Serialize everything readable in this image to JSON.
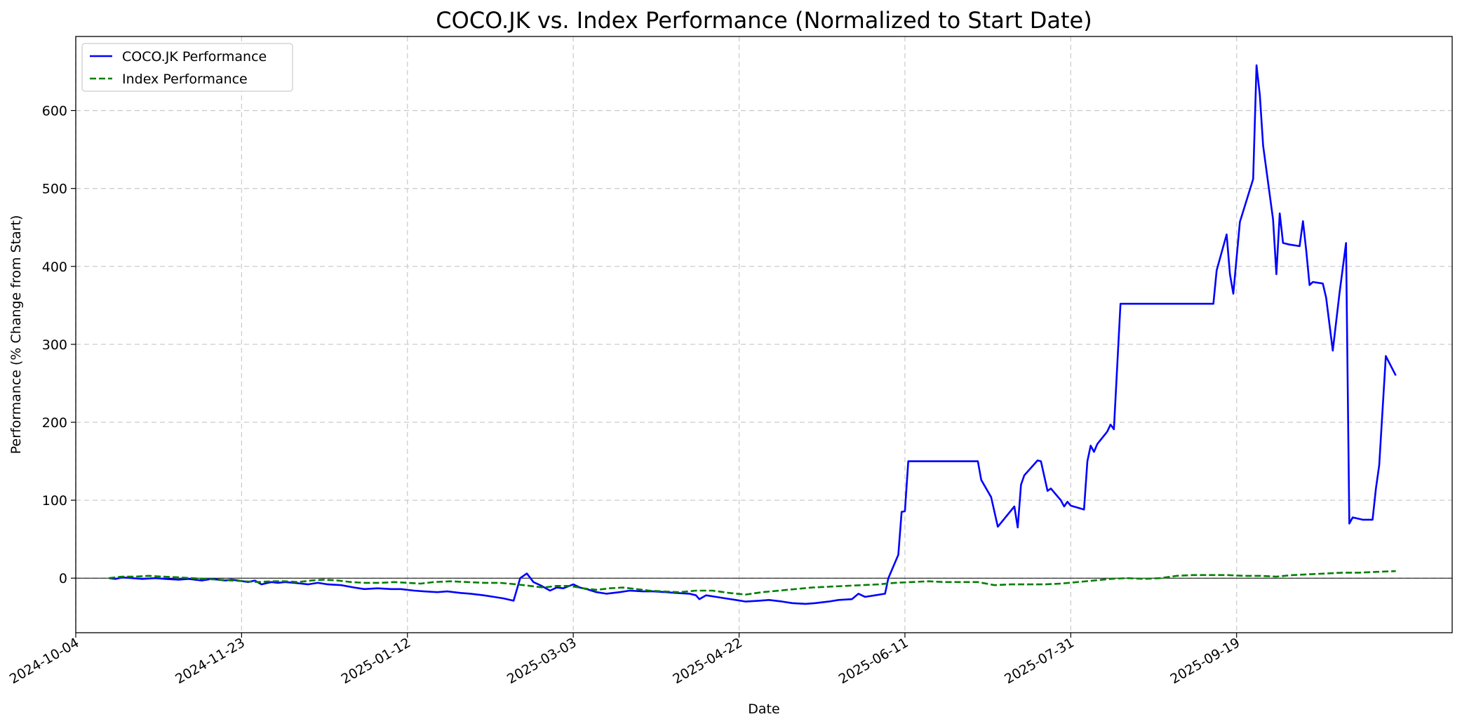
{
  "chart_data": {
    "type": "line",
    "title": "COCO.JK vs. Index Performance (Normalized to Start Date)",
    "xlabel": "Date",
    "ylabel": "Performance (% Change from Start)",
    "x_ticks": [
      "2024-10-04",
      "2024-11-23",
      "2025-01-12",
      "2025-03-03",
      "2025-04-22",
      "2025-06-11",
      "2025-07-31",
      "2025-09-19"
    ],
    "y_ticks": [
      0,
      100,
      200,
      300,
      400,
      500,
      600
    ],
    "xlim": [
      "2024-10-04",
      "2025-11-23"
    ],
    "ylim": [
      -70,
      695
    ],
    "grid": true,
    "zero_line": true,
    "legend_position": "top-left",
    "colors": {
      "coco": "#0000ff",
      "index": "#008000",
      "grid": "#cccccc"
    },
    "series": [
      {
        "name": "COCO.JK Performance",
        "style": "solid",
        "points": [
          [
            "2024-10-14",
            0
          ],
          [
            "2024-10-16",
            -1
          ],
          [
            "2024-10-18",
            1
          ],
          [
            "2024-10-21",
            0
          ],
          [
            "2024-10-24",
            -1
          ],
          [
            "2024-10-28",
            0
          ],
          [
            "2024-10-31",
            -1
          ],
          [
            "2024-11-04",
            -2
          ],
          [
            "2024-11-07",
            -1
          ],
          [
            "2024-11-11",
            -3
          ],
          [
            "2024-11-14",
            -1
          ],
          [
            "2024-11-18",
            -3
          ],
          [
            "2024-11-20",
            -2
          ],
          [
            "2024-11-22",
            -3
          ],
          [
            "2024-11-25",
            -5
          ],
          [
            "2024-11-27",
            -3
          ],
          [
            "2024-11-29",
            -8
          ],
          [
            "2024-12-02",
            -5
          ],
          [
            "2024-12-04",
            -6
          ],
          [
            "2024-12-06",
            -5
          ],
          [
            "2024-12-09",
            -6
          ],
          [
            "2024-12-11",
            -7
          ],
          [
            "2024-12-13",
            -8
          ],
          [
            "2024-12-16",
            -6
          ],
          [
            "2024-12-19",
            -8
          ],
          [
            "2024-12-23",
            -9
          ],
          [
            "2024-12-27",
            -12
          ],
          [
            "2024-12-30",
            -14
          ],
          [
            "2025-01-03",
            -13
          ],
          [
            "2025-01-07",
            -14
          ],
          [
            "2025-01-10",
            -14
          ],
          [
            "2025-01-14",
            -16
          ],
          [
            "2025-01-17",
            -17
          ],
          [
            "2025-01-21",
            -18
          ],
          [
            "2025-01-24",
            -17
          ],
          [
            "2025-01-28",
            -19
          ],
          [
            "2025-01-31",
            -20
          ],
          [
            "2025-02-04",
            -22
          ],
          [
            "2025-02-07",
            -24
          ],
          [
            "2025-02-10",
            -26
          ],
          [
            "2025-02-13",
            -29
          ],
          [
            "2025-02-15",
            0
          ],
          [
            "2025-02-17",
            6
          ],
          [
            "2025-02-19",
            -5
          ],
          [
            "2025-02-21",
            -9
          ],
          [
            "2025-02-24",
            -16
          ],
          [
            "2025-02-26",
            -12
          ],
          [
            "2025-02-28",
            -13
          ],
          [
            "2025-03-03",
            -8
          ],
          [
            "2025-03-05",
            -12
          ],
          [
            "2025-03-07",
            -14
          ],
          [
            "2025-03-10",
            -18
          ],
          [
            "2025-03-13",
            -20
          ],
          [
            "2025-03-17",
            -18
          ],
          [
            "2025-03-20",
            -16
          ],
          [
            "2025-03-24",
            -17
          ],
          [
            "2025-03-27",
            -17
          ],
          [
            "2025-03-31",
            -18
          ],
          [
            "2025-04-03",
            -19
          ],
          [
            "2025-04-07",
            -20
          ],
          [
            "2025-04-09",
            -22
          ],
          [
            "2025-04-10",
            -27
          ],
          [
            "2025-04-12",
            -22
          ],
          [
            "2025-04-15",
            -24
          ],
          [
            "2025-04-18",
            -26
          ],
          [
            "2025-04-21",
            -28
          ],
          [
            "2025-04-24",
            -30
          ],
          [
            "2025-04-28",
            -29
          ],
          [
            "2025-05-01",
            -28
          ],
          [
            "2025-05-05",
            -30
          ],
          [
            "2025-05-08",
            -32
          ],
          [
            "2025-05-12",
            -33
          ],
          [
            "2025-05-15",
            -32
          ],
          [
            "2025-05-19",
            -30
          ],
          [
            "2025-05-22",
            -28
          ],
          [
            "2025-05-26",
            -27
          ],
          [
            "2025-05-28",
            -20
          ],
          [
            "2025-05-30",
            -24
          ],
          [
            "2025-06-02",
            -22
          ],
          [
            "2025-06-05",
            -20
          ],
          [
            "2025-06-06",
            0
          ],
          [
            "2025-06-09",
            30
          ],
          [
            "2025-06-10",
            85
          ],
          [
            "2025-06-11",
            86
          ],
          [
            "2025-06-12",
            150
          ],
          [
            "2025-06-16",
            150
          ],
          [
            "2025-06-20",
            150
          ],
          [
            "2025-06-25",
            150
          ],
          [
            "2025-06-30",
            150
          ],
          [
            "2025-07-03",
            150
          ],
          [
            "2025-07-04",
            126
          ],
          [
            "2025-07-07",
            104
          ],
          [
            "2025-07-09",
            66
          ],
          [
            "2025-07-14",
            92
          ],
          [
            "2025-07-15",
            65
          ],
          [
            "2025-07-16",
            120
          ],
          [
            "2025-07-17",
            132
          ],
          [
            "2025-07-21",
            151
          ],
          [
            "2025-07-22",
            150
          ],
          [
            "2025-07-24",
            112
          ],
          [
            "2025-07-25",
            115
          ],
          [
            "2025-07-28",
            100
          ],
          [
            "2025-07-29",
            92
          ],
          [
            "2025-07-30",
            98
          ],
          [
            "2025-07-31",
            93
          ],
          [
            "2025-08-04",
            88
          ],
          [
            "2025-08-05",
            150
          ],
          [
            "2025-08-06",
            170
          ],
          [
            "2025-08-07",
            162
          ],
          [
            "2025-08-08",
            172
          ],
          [
            "2025-08-11",
            188
          ],
          [
            "2025-08-12",
            197
          ],
          [
            "2025-08-13",
            191
          ],
          [
            "2025-08-15",
            352
          ],
          [
            "2025-08-20",
            352
          ],
          [
            "2025-08-28",
            352
          ],
          [
            "2025-09-03",
            352
          ],
          [
            "2025-09-12",
            352
          ],
          [
            "2025-09-13",
            395
          ],
          [
            "2025-09-16",
            441
          ],
          [
            "2025-09-17",
            390
          ],
          [
            "2025-09-18",
            365
          ],
          [
            "2025-09-20",
            457
          ],
          [
            "2025-09-24",
            512
          ],
          [
            "2025-09-25",
            658
          ],
          [
            "2025-09-26",
            620
          ],
          [
            "2025-09-27",
            555
          ],
          [
            "2025-09-30",
            460
          ],
          [
            "2025-10-01",
            390
          ],
          [
            "2025-10-02",
            468
          ],
          [
            "2025-10-03",
            430
          ],
          [
            "2025-10-05",
            428
          ],
          [
            "2025-10-08",
            426
          ],
          [
            "2025-10-09",
            458
          ],
          [
            "2025-10-10",
            420
          ],
          [
            "2025-10-11",
            376
          ],
          [
            "2025-10-12",
            380
          ],
          [
            "2025-10-15",
            378
          ],
          [
            "2025-10-16",
            360
          ],
          [
            "2025-10-18",
            292
          ],
          [
            "2025-10-20",
            365
          ],
          [
            "2025-10-22",
            430
          ],
          [
            "2025-10-23",
            70
          ],
          [
            "2025-10-24",
            78
          ],
          [
            "2025-10-27",
            75
          ],
          [
            "2025-10-30",
            75
          ],
          [
            "2025-10-31",
            115
          ],
          [
            "2025-11-01",
            145
          ],
          [
            "2025-11-03",
            285
          ],
          [
            "2025-11-06",
            260
          ]
        ]
      },
      {
        "name": "Index Performance",
        "style": "dashed",
        "points": [
          [
            "2024-10-14",
            0
          ],
          [
            "2024-10-18",
            2
          ],
          [
            "2024-10-22",
            2
          ],
          [
            "2024-10-26",
            3
          ],
          [
            "2024-10-30",
            2
          ],
          [
            "2024-11-04",
            1
          ],
          [
            "2024-11-08",
            0
          ],
          [
            "2024-11-12",
            -1
          ],
          [
            "2024-11-16",
            -2
          ],
          [
            "2024-11-20",
            -3
          ],
          [
            "2024-11-24",
            -4
          ],
          [
            "2024-11-28",
            -5
          ],
          [
            "2024-12-02",
            -4
          ],
          [
            "2024-12-06",
            -4
          ],
          [
            "2024-12-10",
            -5
          ],
          [
            "2024-12-14",
            -3
          ],
          [
            "2024-12-18",
            -2
          ],
          [
            "2024-12-22",
            -3
          ],
          [
            "2024-12-26",
            -5
          ],
          [
            "2024-12-30",
            -6
          ],
          [
            "2025-01-04",
            -6
          ],
          [
            "2025-01-08",
            -5
          ],
          [
            "2025-01-12",
            -6
          ],
          [
            "2025-01-16",
            -7
          ],
          [
            "2025-01-20",
            -5
          ],
          [
            "2025-01-25",
            -4
          ],
          [
            "2025-01-30",
            -5
          ],
          [
            "2025-02-04",
            -6
          ],
          [
            "2025-02-09",
            -6
          ],
          [
            "2025-02-14",
            -8
          ],
          [
            "2025-02-18",
            -10
          ],
          [
            "2025-02-22",
            -12
          ],
          [
            "2025-02-26",
            -10
          ],
          [
            "2025-03-02",
            -10
          ],
          [
            "2025-03-06",
            -13
          ],
          [
            "2025-03-10",
            -15
          ],
          [
            "2025-03-14",
            -13
          ],
          [
            "2025-03-18",
            -12
          ],
          [
            "2025-03-22",
            -14
          ],
          [
            "2025-03-26",
            -16
          ],
          [
            "2025-03-30",
            -17
          ],
          [
            "2025-04-04",
            -18
          ],
          [
            "2025-04-09",
            -16
          ],
          [
            "2025-04-14",
            -16
          ],
          [
            "2025-04-19",
            -19
          ],
          [
            "2025-04-24",
            -21
          ],
          [
            "2025-04-29",
            -18
          ],
          [
            "2025-05-04",
            -16
          ],
          [
            "2025-05-09",
            -14
          ],
          [
            "2025-05-14",
            -12
          ],
          [
            "2025-05-19",
            -11
          ],
          [
            "2025-05-24",
            -10
          ],
          [
            "2025-05-29",
            -9
          ],
          [
            "2025-06-03",
            -8
          ],
          [
            "2025-06-08",
            -6
          ],
          [
            "2025-06-13",
            -5
          ],
          [
            "2025-06-18",
            -4
          ],
          [
            "2025-06-23",
            -5
          ],
          [
            "2025-06-28",
            -5
          ],
          [
            "2025-07-03",
            -5
          ],
          [
            "2025-07-08",
            -9
          ],
          [
            "2025-07-13",
            -8
          ],
          [
            "2025-07-18",
            -8
          ],
          [
            "2025-07-23",
            -8
          ],
          [
            "2025-07-28",
            -7
          ],
          [
            "2025-08-02",
            -5
          ],
          [
            "2025-08-07",
            -3
          ],
          [
            "2025-08-12",
            -1
          ],
          [
            "2025-08-17",
            0
          ],
          [
            "2025-08-22",
            -1
          ],
          [
            "2025-08-27",
            0
          ],
          [
            "2025-09-01",
            3
          ],
          [
            "2025-09-06",
            4
          ],
          [
            "2025-09-11",
            4
          ],
          [
            "2025-09-16",
            4
          ],
          [
            "2025-09-21",
            3
          ],
          [
            "2025-09-26",
            3
          ],
          [
            "2025-10-01",
            2
          ],
          [
            "2025-10-06",
            4
          ],
          [
            "2025-10-11",
            5
          ],
          [
            "2025-10-16",
            6
          ],
          [
            "2025-10-21",
            7
          ],
          [
            "2025-10-26",
            7
          ],
          [
            "2025-10-31",
            8
          ],
          [
            "2025-11-06",
            9
          ]
        ]
      }
    ]
  }
}
